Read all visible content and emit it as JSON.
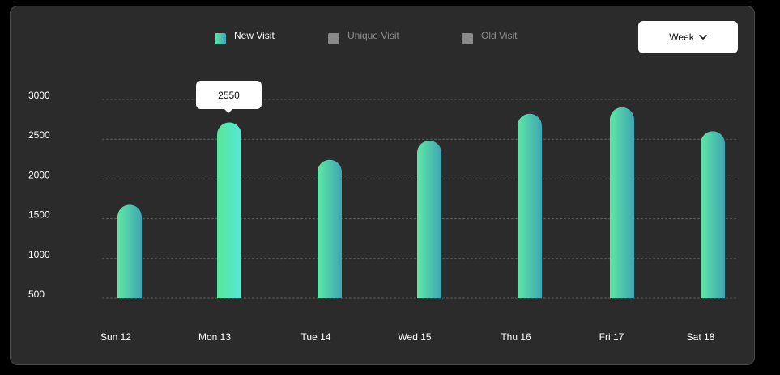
{
  "legend": [
    {
      "label": "New Visit",
      "color": "#4ee6b0",
      "active": true
    },
    {
      "label": "Unique Visit",
      "color": "#8a8a8a",
      "active": false
    },
    {
      "label": "Old Visit",
      "color": "#8a8a8a",
      "active": false
    }
  ],
  "period_select": {
    "label": "Week",
    "icon": "chevron-down-icon"
  },
  "tooltip": {
    "value": "2550"
  },
  "chart_data": {
    "type": "bar",
    "categories": [
      "Sun 12",
      "Mon 13",
      "Tue 14",
      "Wed 15",
      "Thu 16",
      "Fri 17",
      "Sat 18"
    ],
    "series": [
      {
        "name": "New Visit",
        "values": [
          1675,
          2710,
          2240,
          2480,
          2820,
          2900,
          2600
        ]
      }
    ],
    "yticks": [
      500,
      1000,
      1500,
      2000,
      2500,
      3000
    ],
    "ylim": [
      500,
      3000
    ],
    "grid": true,
    "legend_position": "top",
    "colors": {
      "bar_start": "#5ee8a6",
      "bar_end": "#3fa5b3"
    }
  }
}
